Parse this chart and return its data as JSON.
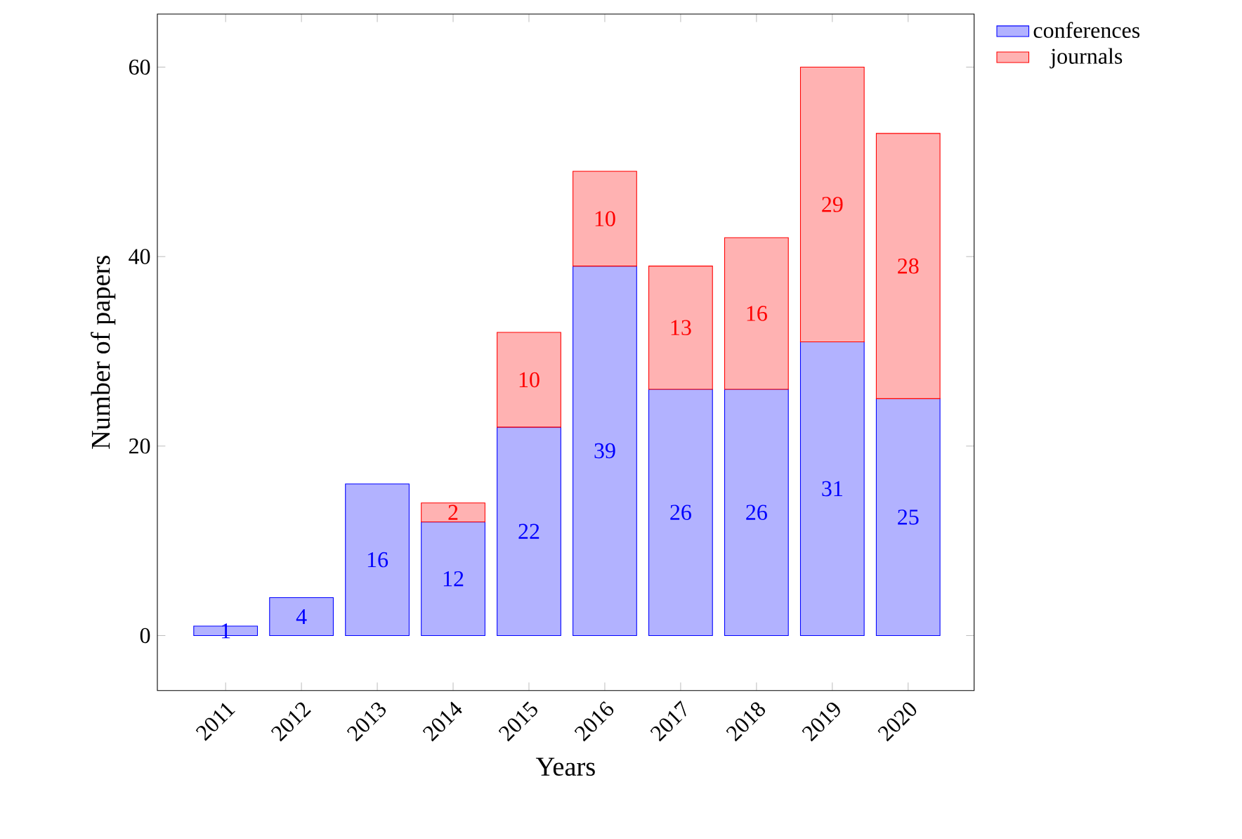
{
  "chart_data": {
    "type": "bar",
    "stacked": true,
    "xlabel": "Years",
    "ylabel": "Number of papers",
    "categories": [
      "2011",
      "2012",
      "2013",
      "2014",
      "2015",
      "2016",
      "2017",
      "2018",
      "2019",
      "2020"
    ],
    "series": [
      {
        "name": "conferences",
        "color": "#0000ff",
        "values": [
          1,
          4,
          16,
          12,
          22,
          39,
          26,
          26,
          31,
          25
        ]
      },
      {
        "name": "journals",
        "color": "#ff0000",
        "values": [
          null,
          null,
          null,
          2,
          10,
          10,
          13,
          16,
          29,
          28
        ]
      }
    ],
    "ylim": [
      -5.8,
      65.6
    ],
    "yticks": [
      0,
      20,
      40,
      60
    ],
    "data_labels": true,
    "grid": false,
    "legend": "top right"
  }
}
